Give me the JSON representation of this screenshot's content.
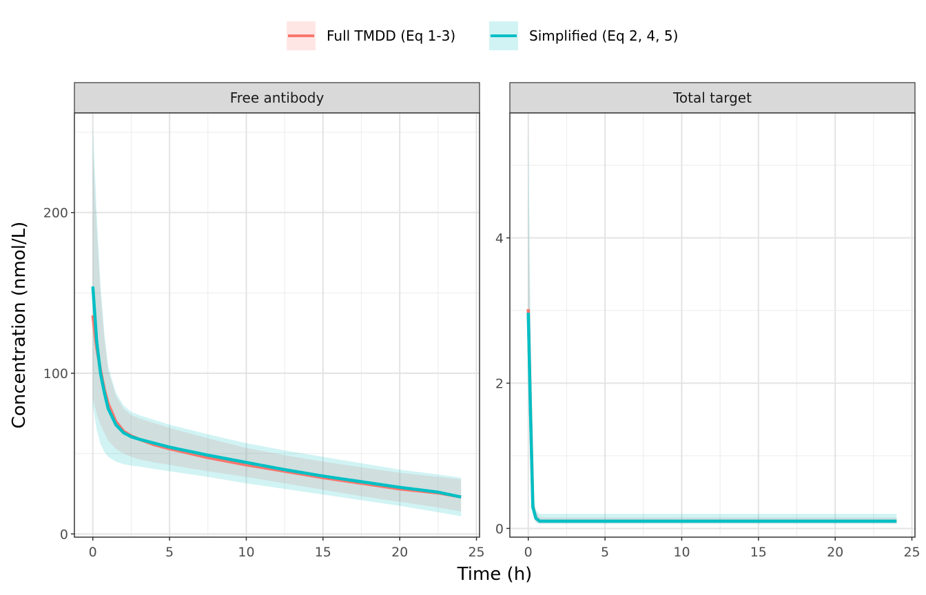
{
  "chart_data": {
    "type": "line",
    "xlabel": "Time (h)",
    "ylabel": "Concentration (nmol/L)",
    "legend": {
      "position": "top",
      "entries": [
        {
          "name": "Full TMDD (Eq 1-3)",
          "color": "#F8766D"
        },
        {
          "name": "Simplified (Eq 2, 4, 5)",
          "color": "#00BFC4"
        }
      ]
    },
    "grid": true,
    "panels": [
      {
        "title": "Free antibody",
        "xlim": [
          -1.2,
          25.2
        ],
        "ylim": [
          -2,
          262
        ],
        "xticks": [
          0,
          5,
          10,
          15,
          20,
          25
        ],
        "yticks": [
          0,
          100,
          200
        ],
        "series": [
          {
            "name": "Full TMDD (Eq 1-3)",
            "color": "#F8766D",
            "x": [
              0,
              0.25,
              0.5,
              0.75,
              1,
              1.5,
              2,
              2.5,
              3,
              4,
              5,
              7.5,
              10,
              12.5,
              15,
              17.5,
              20,
              22.5,
              24
            ],
            "y": [
              136,
              116,
              102,
              90,
              81,
              70,
              64,
              61,
              59,
              55.5,
              53,
              47.5,
              43,
              39,
              35,
              31.5,
              28,
              25.5,
              23
            ],
            "lower": [
              85,
              75,
              68,
              63,
              58,
              53,
              50,
              48,
              46.5,
              44.5,
              43,
              39,
              35.5,
              31.5,
              27.5,
              23.5,
              20,
              16.5,
              14
            ],
            "upper": [
              240,
              190,
              150,
              122,
              102,
              86,
              78,
              74,
              72,
              69,
              66,
              59.5,
              53.5,
              49,
              45,
              41.5,
              38,
              35.5,
              34
            ]
          },
          {
            "name": "Simplified (Eq 2, 4, 5)",
            "color": "#00BFC4",
            "x": [
              0,
              0.25,
              0.5,
              0.75,
              1,
              1.5,
              2,
              2.5,
              3,
              4,
              5,
              7.5,
              10,
              12.5,
              15,
              17.5,
              20,
              22.5,
              24
            ],
            "y": [
              154,
              120,
              100,
              88,
              78,
              68,
              63,
              60.5,
              59,
              56.5,
              54,
              49,
              44.5,
              40,
              36,
              32.5,
              29,
              26,
              23
            ],
            "lower": [
              80,
              65,
              56,
              51,
              48,
              45,
              43.5,
              42.5,
              42,
              40.5,
              39,
              35.5,
              31.5,
              28,
              24.5,
              21,
              17.5,
              13.5,
              11
            ],
            "upper": [
              255,
              200,
              155,
              125,
              104,
              88,
              80,
              76,
              74,
              71,
              68,
              62,
              56.5,
              52,
              48,
              44,
              40,
              37,
              35
            ]
          }
        ]
      },
      {
        "title": "Total target",
        "xlim": [
          -1.2,
          25.2
        ],
        "ylim": [
          -0.12,
          5.72
        ],
        "xticks": [
          0,
          5,
          10,
          15,
          20,
          25
        ],
        "yticks": [
          0,
          2,
          4
        ],
        "series": [
          {
            "name": "Full TMDD (Eq 1-3)",
            "color": "#F8766D",
            "x": [
              0,
              0.15,
              0.3,
              0.5,
              0.75,
              1,
              2,
              24
            ],
            "y": [
              3.02,
              1.6,
              0.3,
              0.14,
              0.1,
              0.1,
              0.1,
              0.1
            ],
            "lower": [
              2.4,
              1.2,
              0.2,
              0.09,
              0.07,
              0.07,
              0.07,
              0.07
            ],
            "upper": [
              4.6,
              2.4,
              0.45,
              0.22,
              0.16,
              0.15,
              0.15,
              0.15
            ]
          },
          {
            "name": "Simplified (Eq 2, 4, 5)",
            "color": "#00BFC4",
            "x": [
              0,
              0.15,
              0.3,
              0.5,
              0.75,
              1,
              2,
              24
            ],
            "y": [
              2.97,
              1.55,
              0.29,
              0.14,
              0.1,
              0.1,
              0.1,
              0.1
            ],
            "lower": [
              2.2,
              1.1,
              0.18,
              0.08,
              0.06,
              0.06,
              0.06,
              0.06
            ],
            "upper": [
              5.6,
              2.8,
              0.5,
              0.25,
              0.2,
              0.2,
              0.2,
              0.2
            ]
          }
        ]
      }
    ]
  }
}
